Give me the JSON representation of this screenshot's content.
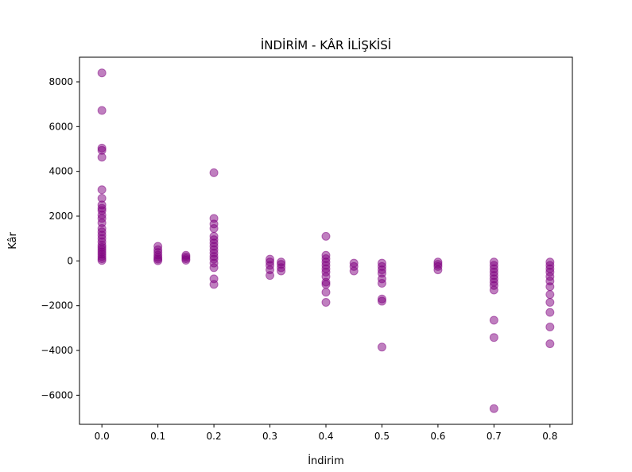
{
  "chart_data": {
    "type": "scatter",
    "title": "İNDİRİM - KÂR İLİŞKİSİ",
    "xlabel": "İndirim",
    "ylabel": "Kâr",
    "xlim": [
      -0.04,
      0.84
    ],
    "ylim": [
      -7300,
      9100
    ],
    "xticks": [
      0.0,
      0.1,
      0.2,
      0.3,
      0.4,
      0.5,
      0.6,
      0.7,
      0.8
    ],
    "xtick_labels": [
      "0.0",
      "0.1",
      "0.2",
      "0.3",
      "0.4",
      "0.5",
      "0.6",
      "0.7",
      "0.8"
    ],
    "yticks": [
      -6000,
      -4000,
      -2000,
      0,
      2000,
      4000,
      6000,
      8000
    ],
    "ytick_labels": [
      "−6000",
      "−4000",
      "−2000",
      "0",
      "2000",
      "4000",
      "6000",
      "8000"
    ],
    "grid": false,
    "marker_color": "#800080",
    "marker_alpha": 0.5,
    "series": [
      {
        "points": [
          [
            0.0,
            8400
          ],
          [
            0.0,
            6720
          ],
          [
            0.0,
            5040
          ],
          [
            0.0,
            4940
          ],
          [
            0.0,
            4630
          ],
          [
            0.0,
            3180
          ],
          [
            0.0,
            2800
          ],
          [
            0.0,
            2500
          ],
          [
            0.0,
            2350
          ],
          [
            0.0,
            2250
          ],
          [
            0.0,
            2050
          ],
          [
            0.0,
            1900
          ],
          [
            0.0,
            1700
          ],
          [
            0.0,
            1450
          ],
          [
            0.0,
            1300
          ],
          [
            0.0,
            1150
          ],
          [
            0.0,
            1000
          ],
          [
            0.0,
            850
          ],
          [
            0.0,
            700
          ],
          [
            0.0,
            600
          ],
          [
            0.0,
            500
          ],
          [
            0.0,
            400
          ],
          [
            0.0,
            300
          ],
          [
            0.0,
            200
          ],
          [
            0.0,
            100
          ],
          [
            0.0,
            20
          ],
          [
            0.1,
            650
          ],
          [
            0.1,
            500
          ],
          [
            0.1,
            380
          ],
          [
            0.1,
            260
          ],
          [
            0.1,
            160
          ],
          [
            0.1,
            80
          ],
          [
            0.1,
            10
          ],
          [
            0.15,
            250
          ],
          [
            0.15,
            180
          ],
          [
            0.15,
            100
          ],
          [
            0.15,
            30
          ],
          [
            0.2,
            3940
          ],
          [
            0.2,
            1900
          ],
          [
            0.2,
            1650
          ],
          [
            0.2,
            1450
          ],
          [
            0.2,
            1100
          ],
          [
            0.2,
            950
          ],
          [
            0.2,
            800
          ],
          [
            0.2,
            650
          ],
          [
            0.2,
            500
          ],
          [
            0.2,
            350
          ],
          [
            0.2,
            200
          ],
          [
            0.2,
            80
          ],
          [
            0.2,
            -100
          ],
          [
            0.2,
            -300
          ],
          [
            0.2,
            -800
          ],
          [
            0.2,
            -1050
          ],
          [
            0.3,
            80
          ],
          [
            0.3,
            -50
          ],
          [
            0.3,
            -200
          ],
          [
            0.3,
            -400
          ],
          [
            0.3,
            -650
          ],
          [
            0.32,
            -50
          ],
          [
            0.32,
            -150
          ],
          [
            0.32,
            -300
          ],
          [
            0.32,
            -450
          ],
          [
            0.4,
            1100
          ],
          [
            0.4,
            250
          ],
          [
            0.4,
            100
          ],
          [
            0.4,
            -50
          ],
          [
            0.4,
            -200
          ],
          [
            0.4,
            -350
          ],
          [
            0.4,
            -500
          ],
          [
            0.4,
            -700
          ],
          [
            0.4,
            -950
          ],
          [
            0.4,
            -1050
          ],
          [
            0.4,
            -1400
          ],
          [
            0.4,
            -1850
          ],
          [
            0.45,
            -100
          ],
          [
            0.45,
            -250
          ],
          [
            0.45,
            -450
          ],
          [
            0.5,
            -100
          ],
          [
            0.5,
            -250
          ],
          [
            0.5,
            -400
          ],
          [
            0.5,
            -550
          ],
          [
            0.5,
            -800
          ],
          [
            0.5,
            -1000
          ],
          [
            0.5,
            -1700
          ],
          [
            0.5,
            -1800
          ],
          [
            0.5,
            -3850
          ],
          [
            0.6,
            -50
          ],
          [
            0.6,
            -150
          ],
          [
            0.6,
            -250
          ],
          [
            0.6,
            -400
          ],
          [
            0.7,
            -50
          ],
          [
            0.7,
            -200
          ],
          [
            0.7,
            -350
          ],
          [
            0.7,
            -500
          ],
          [
            0.7,
            -650
          ],
          [
            0.7,
            -800
          ],
          [
            0.7,
            -950
          ],
          [
            0.7,
            -1100
          ],
          [
            0.7,
            -1300
          ],
          [
            0.7,
            -2650
          ],
          [
            0.7,
            -3420
          ],
          [
            0.7,
            -6600
          ],
          [
            0.8,
            -50
          ],
          [
            0.8,
            -200
          ],
          [
            0.8,
            -350
          ],
          [
            0.8,
            -500
          ],
          [
            0.8,
            -700
          ],
          [
            0.8,
            -900
          ],
          [
            0.8,
            -1150
          ],
          [
            0.8,
            -1500
          ],
          [
            0.8,
            -1850
          ],
          [
            0.8,
            -2300
          ],
          [
            0.8,
            -2950
          ],
          [
            0.8,
            -3700
          ]
        ]
      }
    ]
  }
}
